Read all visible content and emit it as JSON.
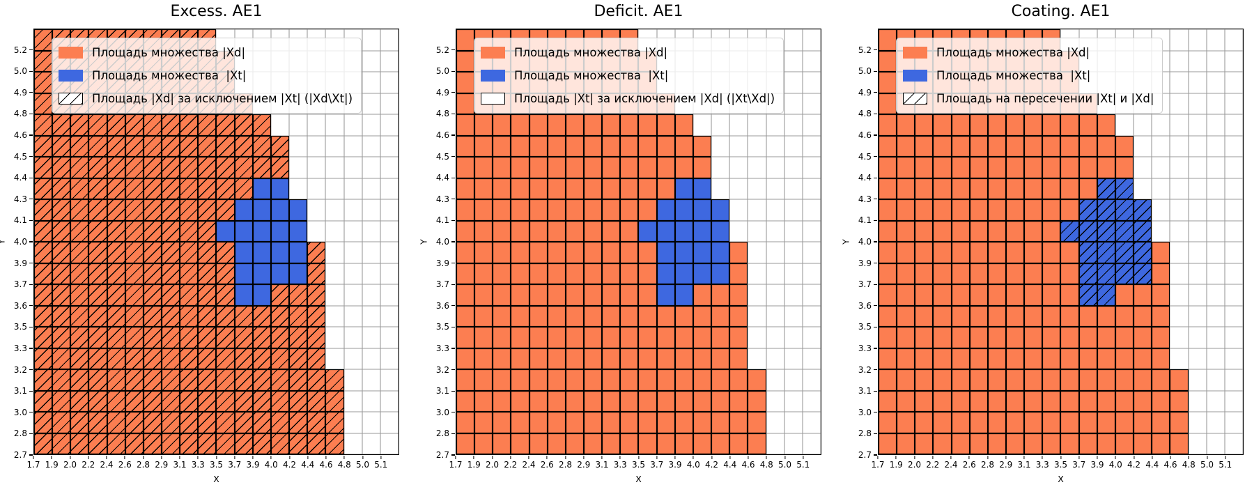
{
  "colors": {
    "xd_fill": "#FC7E51",
    "xt_fill": "#3E68E0",
    "grid_line": "#9A9A9A",
    "cell_edge": "#000000",
    "legend_border": "#CCCCCC"
  },
  "axes": {
    "xlabel": "X",
    "ylabel": "Y",
    "xticks": [
      "1.7",
      "1.9",
      "2.0",
      "2.2",
      "2.4",
      "2.6",
      "2.8",
      "2.9",
      "3.1",
      "3.3",
      "3.5",
      "3.7",
      "3.9",
      "4.0",
      "4.2",
      "4.4",
      "4.6",
      "4.8",
      "5.0",
      "5.1"
    ],
    "yticks_bottom_to_top": [
      "2.7",
      "2.8",
      "3.0",
      "3.1",
      "3.2",
      "3.3",
      "3.5",
      "3.6",
      "3.7",
      "3.9",
      "4.0",
      "4.1",
      "4.3",
      "4.4",
      "4.5",
      "4.6",
      "4.8",
      "4.9",
      "5.0",
      "5.2"
    ]
  },
  "subplots": [
    {
      "title": "Excess. AE1",
      "hatch_on": "o",
      "legend": [
        {
          "swatch": "xd",
          "label": "Площадь множества |Xd|"
        },
        {
          "swatch": "xt",
          "label": "Площадь множества  |Xt|"
        },
        {
          "swatch": "hatch",
          "label": "Площадь |Xd| за исключением |Xt| (|Xd\\Xt|)"
        }
      ]
    },
    {
      "title": "Deficit. AE1",
      "hatch_on": "none",
      "legend": [
        {
          "swatch": "xd",
          "label": "Площадь множества |Xd|"
        },
        {
          "swatch": "xt",
          "label": "Площадь множества  |Xt|"
        },
        {
          "swatch": "empty",
          "label": "Площадь |Xt| за исключением |Xd| (|Xt\\Xd|)"
        }
      ]
    },
    {
      "title": "Coating. AE1",
      "hatch_on": "b",
      "legend": [
        {
          "swatch": "xd",
          "label": "Площадь множества |Xd|"
        },
        {
          "swatch": "xt",
          "label": "Площадь множества  |Xt|"
        },
        {
          "swatch": "hatch",
          "label": "Площадь на пересечении |Xt| и |Xd|"
        }
      ]
    }
  ],
  "chart_data": {
    "type": "heatmap",
    "subplot_titles": [
      "Excess. AE1",
      "Deficit. AE1",
      "Coating. AE1"
    ],
    "xlabel": "X",
    "ylabel": "Y",
    "x_tick_labels": [
      "1.7",
      "1.9",
      "2.0",
      "2.2",
      "2.4",
      "2.6",
      "2.8",
      "2.9",
      "3.1",
      "3.3",
      "3.5",
      "3.7",
      "3.9",
      "4.0",
      "4.2",
      "4.4",
      "4.6",
      "4.8",
      "5.0",
      "5.1"
    ],
    "y_tick_labels_bottom_to_top": [
      "2.7",
      "2.8",
      "3.0",
      "3.1",
      "3.2",
      "3.3",
      "3.5",
      "3.6",
      "3.7",
      "3.9",
      "4.0",
      "4.1",
      "4.3",
      "4.4",
      "4.5",
      "4.6",
      "4.8",
      "4.9",
      "5.0",
      "5.2"
    ],
    "grid_size": [
      20,
      20
    ],
    "cell_encoding": {
      "o": "set |Xd| (orange)",
      "b": "set |Xt| (blue)",
      ".": "empty (white)"
    },
    "grid_rows_top_to_bottom": [
      "oooooooooo..........",
      "ooooooooooo.........",
      "ooooooooooo.........",
      "oooooooooooo........",
      "ooooooooooooo.......",
      "oooooooooooooo......",
      "oooooooooooooo......",
      "oooooooooooobb......",
      "ooooooooooobbbb.....",
      "oooooooooobbbbb.....",
      "ooooooooooobbbbo....",
      "ooooooooooobbbbo....",
      "ooooooooooobbooo....",
      "oooooooooooooooo....",
      "oooooooooooooooo....",
      "oooooooooooooooo....",
      "ooooooooooooooooo...",
      "ooooooooooooooooo...",
      "ooooooooooooooooo...",
      "ooooooooooooooooo..."
    ],
    "hatch_per_subplot": [
      "hatch '/' over |Xd| (orange) cells",
      "no hatched cells",
      "hatch '/' over |Xt| (blue) cells"
    ],
    "legend_position": "upper left",
    "grid": "on"
  }
}
